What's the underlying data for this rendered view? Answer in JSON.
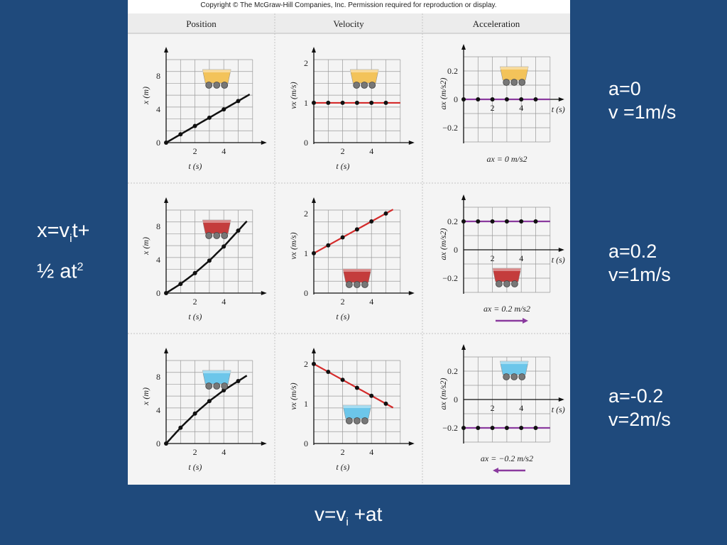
{
  "copyright": "Copyright © The McGraw-Hill Companies, Inc. Permission required for reproduction or display.",
  "columns": [
    "Position",
    "Velocity",
    "Acceleration"
  ],
  "annotations": {
    "row1": {
      "line1": "a=0",
      "line2": "v =1m/s"
    },
    "row2": {
      "line1": "a=0.2",
      "line2": "v=1m/s"
    },
    "row3": {
      "line1": "a=-0.2",
      "line2": "v=2m/s"
    },
    "position_eq": {
      "x": "x=v",
      "i1": "i",
      "t": "t+",
      "half": "½ at",
      "sq": "2"
    },
    "velocity_eq": {
      "v": "v=v",
      "i": "i",
      "rest": " +at"
    }
  },
  "colors": {
    "background": "#1f4a7c",
    "velocity_line": "#d42a2a",
    "accel_line": "#8a3a9e",
    "cart_yellow": "#f3c35a",
    "cart_red": "#c43c3c",
    "cart_blue": "#6cc6ea"
  },
  "chart_data": [
    {
      "type": "line",
      "row": 1,
      "column": "Position",
      "cart": "cart_yellow",
      "xlabel": "t (s)",
      "ylabel": "x (m)",
      "xlim": [
        0,
        6
      ],
      "ylim": [
        0,
        11
      ],
      "xticks": [
        2,
        4
      ],
      "yticks": [
        0,
        4,
        8
      ],
      "series": [
        {
          "x": [
            0,
            1,
            2,
            3,
            4,
            5
          ],
          "y": [
            0,
            1,
            2,
            3,
            4,
            5
          ],
          "line_x": [
            0,
            5.8
          ],
          "line_y": [
            0,
            5.8
          ]
        }
      ]
    },
    {
      "type": "line",
      "row": 1,
      "column": "Velocity",
      "cart": "cart_yellow",
      "xlabel": "t (s)",
      "ylabel": "vx (m/s)",
      "xlim": [
        0,
        6
      ],
      "ylim": [
        0,
        2.3
      ],
      "xticks": [
        2,
        4
      ],
      "yticks": [
        0,
        1,
        2
      ],
      "line_color": "velocity_line",
      "series": [
        {
          "x": [
            0,
            1,
            2,
            3,
            4,
            5
          ],
          "y": [
            1,
            1,
            1,
            1,
            1,
            1
          ],
          "line_x": [
            0,
            6
          ],
          "line_y": [
            1,
            1
          ]
        }
      ]
    },
    {
      "type": "line",
      "row": 1,
      "column": "Acceleration",
      "cart": "cart_yellow",
      "xlabel": "t (s)",
      "ylabel": "ax (m/s2)",
      "xlim": [
        0,
        6
      ],
      "ylim": [
        -0.3,
        0.3
      ],
      "xticks": [
        2,
        4
      ],
      "yticks": [
        -0.2,
        0,
        0.2
      ],
      "line_color": "accel_line",
      "series": [
        {
          "x": [
            0,
            1,
            2,
            3,
            4,
            5
          ],
          "y": [
            0,
            0,
            0,
            0,
            0,
            0
          ],
          "line_x": [
            0,
            6
          ],
          "line_y": [
            0,
            0
          ]
        }
      ],
      "caption": "ax = 0 m/s2"
    },
    {
      "type": "line",
      "row": 2,
      "column": "Position",
      "cart": "cart_red",
      "xlabel": "t (s)",
      "ylabel": "x (m)",
      "xlim": [
        0,
        6
      ],
      "ylim": [
        0,
        11
      ],
      "xticks": [
        2,
        4
      ],
      "yticks": [
        0,
        4,
        8
      ],
      "series": [
        {
          "x": [
            0,
            1,
            2,
            3,
            4,
            5
          ],
          "y": [
            0,
            1.1,
            2.4,
            3.9,
            5.6,
            7.5
          ],
          "line_x": [
            0,
            5.6
          ],
          "line_y": [
            0,
            8.7
          ]
        }
      ]
    },
    {
      "type": "line",
      "row": 2,
      "column": "Velocity",
      "cart": "cart_red",
      "xlabel": "t (s)",
      "ylabel": "vx (m/s)",
      "xlim": [
        0,
        6
      ],
      "ylim": [
        0,
        2.3
      ],
      "xticks": [
        2,
        4
      ],
      "yticks": [
        0,
        1,
        2
      ],
      "line_color": "velocity_line",
      "series": [
        {
          "x": [
            0,
            1,
            2,
            3,
            4,
            5
          ],
          "y": [
            1,
            1.2,
            1.4,
            1.6,
            1.8,
            2
          ],
          "line_x": [
            0,
            5.5
          ],
          "line_y": [
            1,
            2.1
          ]
        }
      ]
    },
    {
      "type": "line",
      "row": 2,
      "column": "Acceleration",
      "cart": "cart_red",
      "xlabel": "t (s)",
      "ylabel": "ax (m/s2)",
      "xlim": [
        0,
        6
      ],
      "ylim": [
        -0.3,
        0.3
      ],
      "xticks": [
        2,
        4
      ],
      "yticks": [
        -0.2,
        0,
        0.2
      ],
      "line_color": "accel_line",
      "series": [
        {
          "x": [
            0,
            1,
            2,
            3,
            4,
            5
          ],
          "y": [
            0.2,
            0.2,
            0.2,
            0.2,
            0.2,
            0.2
          ],
          "line_x": [
            0,
            6
          ],
          "line_y": [
            0.2,
            0.2
          ]
        }
      ],
      "caption": "ax = 0.2 m/s2",
      "arrow": "right"
    },
    {
      "type": "line",
      "row": 3,
      "column": "Position",
      "cart": "cart_blue",
      "xlabel": "t (s)",
      "ylabel": "x (m)",
      "xlim": [
        0,
        6
      ],
      "ylim": [
        0,
        11
      ],
      "xticks": [
        2,
        4
      ],
      "yticks": [
        0,
        4,
        8
      ],
      "series": [
        {
          "x": [
            0,
            1,
            2,
            3,
            4,
            5
          ],
          "y": [
            0,
            1.9,
            3.6,
            5.1,
            6.4,
            7.5
          ],
          "line_x": [
            0,
            5.6
          ],
          "line_y": [
            0,
            8.1
          ]
        }
      ]
    },
    {
      "type": "line",
      "row": 3,
      "column": "Velocity",
      "cart": "cart_blue",
      "xlabel": "t (s)",
      "ylabel": "vx (m/s)",
      "xlim": [
        0,
        6
      ],
      "ylim": [
        0,
        2.3
      ],
      "xticks": [
        2,
        4
      ],
      "yticks": [
        0,
        1,
        2
      ],
      "line_color": "velocity_line",
      "series": [
        {
          "x": [
            0,
            1,
            2,
            3,
            4,
            5
          ],
          "y": [
            2,
            1.8,
            1.6,
            1.4,
            1.2,
            1
          ],
          "line_x": [
            0,
            5.5
          ],
          "line_y": [
            2,
            0.9
          ]
        }
      ]
    },
    {
      "type": "line",
      "row": 3,
      "column": "Acceleration",
      "cart": "cart_blue",
      "xlabel": "t (s)",
      "ylabel": "ax (m/s2)",
      "xlim": [
        0,
        6
      ],
      "ylim": [
        -0.3,
        0.3
      ],
      "xticks": [
        2,
        4
      ],
      "yticks": [
        -0.2,
        0,
        0.2
      ],
      "line_color": "accel_line",
      "series": [
        {
          "x": [
            0,
            1,
            2,
            3,
            4,
            5
          ],
          "y": [
            -0.2,
            -0.2,
            -0.2,
            -0.2,
            -0.2,
            -0.2
          ],
          "line_x": [
            0,
            6
          ],
          "line_y": [
            -0.2,
            -0.2
          ]
        }
      ],
      "caption": "ax = −0.2 m/s2",
      "arrow": "left"
    }
  ]
}
